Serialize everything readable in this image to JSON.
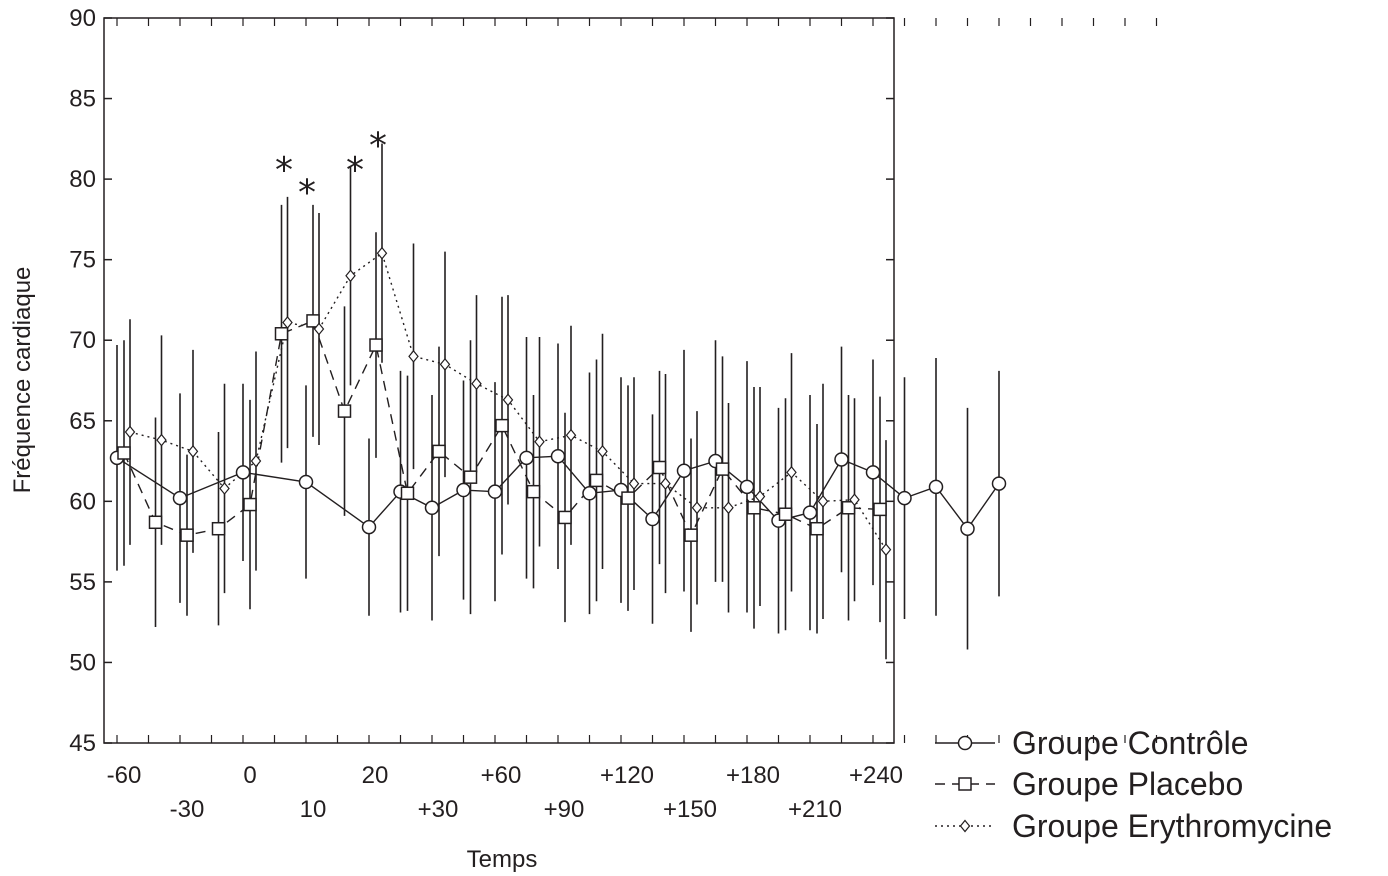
{
  "chart_data": {
    "type": "line",
    "title": "",
    "xlabel": "Temps",
    "ylabel": "Fréquence cardiaque",
    "ylim": [
      45,
      90
    ],
    "yticks": [
      45,
      50,
      55,
      60,
      65,
      70,
      75,
      80,
      85,
      90
    ],
    "x_tick_labels_row1": [
      "-60",
      "0",
      "20",
      "+60",
      "+120",
      "+180",
      "+240"
    ],
    "x_tick_labels_row2": [
      "-30",
      "10",
      "+30",
      "+90",
      "+150",
      "+210"
    ],
    "grid": false,
    "legend_position": "bottom-right",
    "significance_marker": "*",
    "significant_points": [
      {
        "x": 5,
        "y": 80.7
      },
      {
        "x": 10,
        "y": 79.3
      },
      {
        "x": 15,
        "y": 80.7
      },
      {
        "x": 20,
        "y": 82.2
      }
    ],
    "x": [
      -60,
      -50,
      -40,
      -30,
      -20,
      -10,
      0,
      5,
      10,
      15,
      20,
      25,
      30,
      40,
      50,
      60,
      70,
      80,
      90,
      100,
      110,
      120,
      130,
      140,
      150,
      160,
      170,
      180,
      190,
      200,
      210,
      220,
      230,
      240
    ],
    "series": [
      {
        "name": "Groupe Contrôle",
        "color": "#231f20",
        "marker": "circle",
        "line": "solid",
        "values": [
          62.7,
          null,
          60.2,
          null,
          61.8,
          null,
          61.2,
          null,
          58.4,
          60.6,
          59.6,
          60.7,
          60.6,
          62.7,
          62.8,
          60.5,
          60.7,
          58.9,
          61.9,
          62.5,
          60.9,
          58.8,
          59.3,
          62.6,
          61.8,
          60.2,
          60.9,
          58.3,
          61.1,
          null,
          null,
          null,
          null,
          null
        ],
        "errors": [
          7,
          null,
          6.5,
          null,
          5.5,
          null,
          6,
          null,
          5.5,
          7.5,
          7,
          6.8,
          6.8,
          7.5,
          7,
          7.5,
          7,
          6.5,
          7.5,
          7.5,
          7.8,
          7,
          7.3,
          7,
          7,
          7.5,
          8,
          7.5,
          7,
          null,
          null,
          null,
          null,
          null
        ]
      },
      {
        "name": "Groupe Placebo",
        "color": "#231f20",
        "marker": "square",
        "line": "dashed",
        "values": [
          63.0,
          58.7,
          57.9,
          58.3,
          59.8,
          70.4,
          71.2,
          65.6,
          69.7,
          60.5,
          63.1,
          61.5,
          64.7,
          60.6,
          59.0,
          61.3,
          60.2,
          62.1,
          57.9,
          62.0,
          59.6,
          59.2,
          58.3,
          59.6,
          59.5,
          null,
          null,
          null,
          null,
          null,
          null,
          null,
          null,
          null
        ],
        "errors": [
          7,
          6.5,
          5,
          6,
          6.5,
          8,
          7.2,
          6.5,
          7,
          7.3,
          6.5,
          8.5,
          8,
          6,
          6.5,
          7.5,
          7,
          6,
          6,
          7,
          7.5,
          7.2,
          6.5,
          7,
          7,
          null,
          null,
          null,
          null,
          null,
          null,
          null,
          null,
          null
        ]
      },
      {
        "name": "Groupe Erythromycine",
        "color": "#231f20",
        "marker": "diamond",
        "line": "dotted",
        "values": [
          64.3,
          63.8,
          63.1,
          60.8,
          62.5,
          71.1,
          70.7,
          74.0,
          75.4,
          69.0,
          68.5,
          67.3,
          66.3,
          63.7,
          64.1,
          63.1,
          61.1,
          61.1,
          59.6,
          59.6,
          60.3,
          61.8,
          60.0,
          60.1,
          57.0,
          null,
          null,
          null,
          null,
          null,
          null,
          null,
          null,
          null
        ],
        "errors": [
          7,
          6.5,
          6.3,
          6.5,
          6.8,
          7.8,
          7.2,
          6.8,
          6.8,
          7,
          7,
          5.5,
          6.5,
          6.5,
          6.8,
          7.3,
          6.6,
          6.8,
          6,
          6.5,
          6.8,
          7.4,
          7.3,
          6.3,
          6.8,
          null,
          null,
          null,
          null,
          null,
          null,
          null,
          null,
          null
        ]
      }
    ]
  }
}
